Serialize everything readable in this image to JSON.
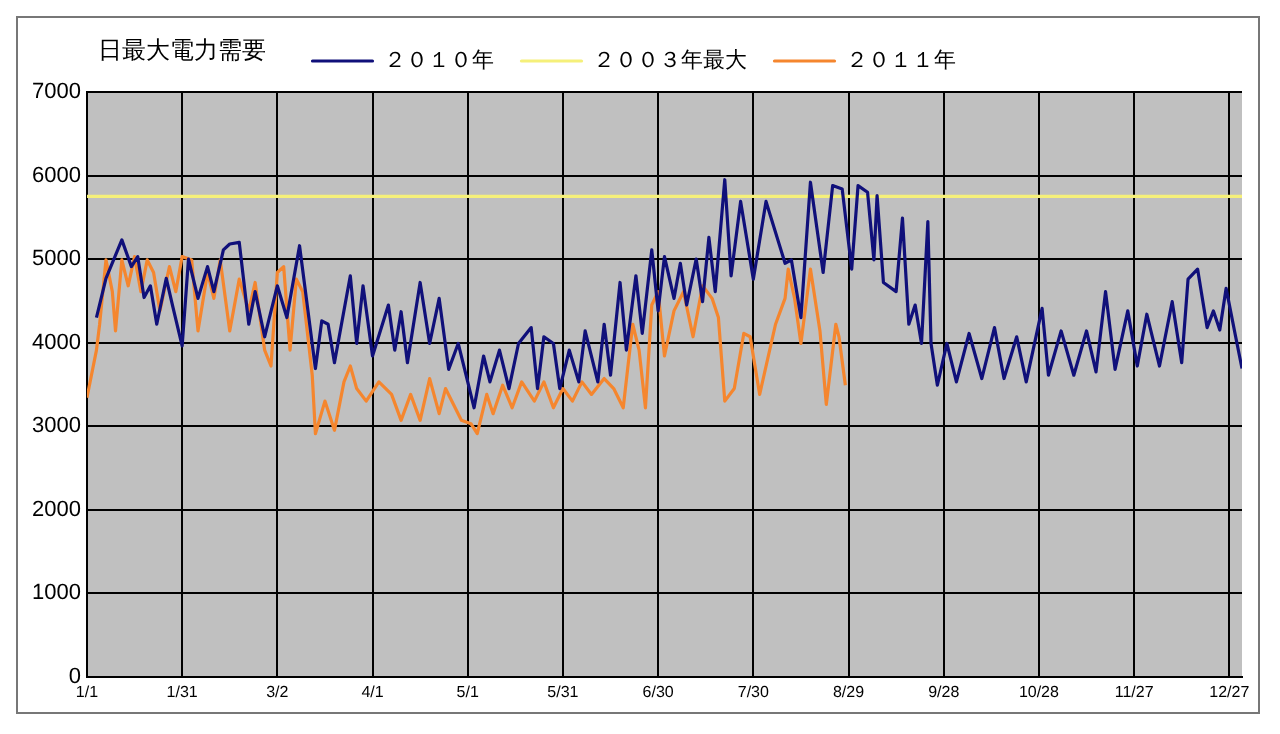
{
  "chart_data": {
    "type": "line",
    "title": "日最大電力需要",
    "legend": "top",
    "grid": true,
    "xlim": [
      "--01-01",
      "--12-31"
    ],
    "xticks": [
      {
        "value": "--01-01",
        "label": "1/1"
      },
      {
        "value": "--01-31",
        "label": "1/31"
      },
      {
        "value": "--03-02",
        "label": "3/2"
      },
      {
        "value": "--04-01",
        "label": "4/1"
      },
      {
        "value": "--05-01",
        "label": "5/1"
      },
      {
        "value": "--05-31",
        "label": "5/31"
      },
      {
        "value": "--06-30",
        "label": "6/30"
      },
      {
        "value": "--07-30",
        "label": "7/30"
      },
      {
        "value": "--08-29",
        "label": "8/29"
      },
      {
        "value": "--09-28",
        "label": "9/28"
      },
      {
        "value": "--10-28",
        "label": "10/28"
      },
      {
        "value": "--11-27",
        "label": "11/27"
      },
      {
        "value": "--12-27",
        "label": "12/27"
      }
    ],
    "ylim": [
      0,
      7000
    ],
    "yticks": [
      0,
      1000,
      2000,
      3000,
      4000,
      5000,
      6000,
      7000
    ],
    "series": [
      {
        "name": "２０１０年",
        "color": "#10107a",
        "x": [
          "--01-04",
          "--01-07",
          "--01-12",
          "--01-15",
          "--01-17",
          "--01-19",
          "--01-21",
          "--01-23",
          "--01-26",
          "--01-28",
          "--01-31",
          "--02-02",
          "--02-05",
          "--02-08",
          "--02-10",
          "--02-13",
          "--02-15",
          "--02-18",
          "--02-21",
          "--02-23",
          "--02-26",
          "--03-02",
          "--03-05",
          "--03-09",
          "--03-14",
          "--03-16",
          "--03-18",
          "--03-20",
          "--03-25",
          "--03-27",
          "--03-29",
          "--04-01",
          "--04-06",
          "--04-08",
          "--04-10",
          "--04-12",
          "--04-16",
          "--04-19",
          "--04-22",
          "--04-25",
          "--04-28",
          "--05-01",
          "--05-03",
          "--05-06",
          "--05-08",
          "--05-11",
          "--05-14",
          "--05-17",
          "--05-21",
          "--05-23",
          "--05-25",
          "--05-28",
          "--05-30",
          "--06-02",
          "--06-05",
          "--06-07",
          "--06-11",
          "--06-13",
          "--06-15",
          "--06-18",
          "--06-20",
          "--06-23",
          "--06-25",
          "--06-28",
          "--06-30",
          "--07-02",
          "--07-05",
          "--07-07",
          "--07-09",
          "--07-12",
          "--07-14",
          "--07-16",
          "--07-18",
          "--07-21",
          "--07-23",
          "--07-26",
          "--07-30",
          "--08-03",
          "--08-09",
          "--08-11",
          "--08-14",
          "--08-17",
          "--08-21",
          "--08-24",
          "--08-27",
          "--08-30",
          "--09-01",
          "--09-04",
          "--09-06",
          "--09-07",
          "--09-09",
          "--09-13",
          "--09-15",
          "--09-17",
          "--09-19",
          "--09-21",
          "--09-23",
          "--09-24",
          "--09-26",
          "--09-29",
          "--10-02",
          "--10-06",
          "--10-10",
          "--10-14",
          "--10-17",
          "--10-21",
          "--10-24",
          "--10-29",
          "--10-31",
          "--11-04",
          "--11-08",
          "--11-12",
          "--11-15",
          "--11-18",
          "--11-21",
          "--11-25",
          "--11-28",
          "--12-01",
          "--12-05",
          "--12-09",
          "--12-12",
          "--12-14",
          "--12-17",
          "--12-20",
          "--12-22",
          "--12-24",
          "--12-26",
          "--12-29",
          "--12-31"
        ],
        "values": [
          4300,
          4770,
          5230,
          4910,
          5030,
          4540,
          4680,
          4220,
          4770,
          4440,
          3960,
          5000,
          4530,
          4910,
          4610,
          5110,
          5180,
          5200,
          4220,
          4610,
          4070,
          4680,
          4300,
          5160,
          3690,
          4260,
          4220,
          3760,
          4800,
          3990,
          4680,
          3840,
          4450,
          3910,
          4370,
          3760,
          4720,
          3990,
          4530,
          3680,
          3990,
          3530,
          3220,
          3840,
          3530,
          3910,
          3450,
          3990,
          4180,
          3450,
          4070,
          3990,
          3450,
          3910,
          3530,
          4140,
          3530,
          4220,
          3610,
          4720,
          3910,
          4800,
          4110,
          5110,
          4380,
          5030,
          4530,
          4950,
          4450,
          5000,
          4490,
          5260,
          4610,
          5950,
          4800,
          5690,
          4760,
          5690,
          4950,
          4990,
          4300,
          5920,
          4840,
          5880,
          5840,
          4880,
          5880,
          5800,
          4990,
          5760,
          4720,
          4610,
          5490,
          4220,
          4450,
          3990,
          5450,
          3990,
          3490,
          3990,
          3530,
          4110,
          3570,
          4180,
          3570,
          4070,
          3530,
          4410,
          3610,
          4140,
          3610,
          4140,
          3650,
          4610,
          3680,
          4380,
          3720,
          4340,
          3720,
          4490,
          3760,
          4760,
          4880,
          4180,
          4380,
          4150,
          4650,
          4070,
          3690
        ]
      },
      {
        "name": "２００３年最大",
        "color": "#f5f07a",
        "x": [
          "--01-01",
          "--12-31"
        ],
        "values": [
          5750,
          5750
        ]
      },
      {
        "name": "２０１１年",
        "color": "#f5862e",
        "x": [
          "--01-01",
          "--01-04",
          "--01-05",
          "--01-07",
          "--01-09",
          "--01-10",
          "--01-12",
          "--01-14",
          "--01-16",
          "--01-18",
          "--01-20",
          "--01-22",
          "--01-24",
          "--01-27",
          "--01-29",
          "--01-31",
          "--02-03",
          "--02-05",
          "--02-08",
          "--02-10",
          "--02-12",
          "--02-15",
          "--02-18",
          "--02-21",
          "--02-23",
          "--02-26",
          "--02-28",
          "--03-02",
          "--03-04",
          "--03-06",
          "--03-08",
          "--03-10",
          "--03-13",
          "--03-14",
          "--03-17",
          "--03-20",
          "--03-23",
          "--03-25",
          "--03-27",
          "--03-30",
          "--04-03",
          "--04-07",
          "--04-10",
          "--04-13",
          "--04-16",
          "--04-19",
          "--04-22",
          "--04-24",
          "--04-29",
          "--05-02",
          "--05-04",
          "--05-07",
          "--05-09",
          "--05-12",
          "--05-15",
          "--05-18",
          "--05-22",
          "--05-25",
          "--05-28",
          "--05-31",
          "--06-03",
          "--06-06",
          "--06-09",
          "--06-13",
          "--06-16",
          "--06-19",
          "--06-22",
          "--06-24",
          "--06-26",
          "--06-28",
          "--06-30",
          "--07-02",
          "--07-05",
          "--07-08",
          "--07-11",
          "--07-14",
          "--07-17",
          "--07-19",
          "--07-21",
          "--07-24",
          "--07-27",
          "--07-29",
          "--08-01",
          "--08-06",
          "--08-09",
          "--08-10",
          "--08-12",
          "--08-14",
          "--08-17",
          "--08-20",
          "--08-22",
          "--08-25",
          "--08-26",
          "--08-28"
        ],
        "values": [
          3340,
          3910,
          4220,
          4990,
          4610,
          4140,
          4990,
          4680,
          5030,
          4610,
          4990,
          4840,
          4380,
          4910,
          4610,
          5030,
          4990,
          4140,
          4840,
          4530,
          4990,
          4140,
          4760,
          4380,
          4720,
          3910,
          3720,
          4840,
          4910,
          3910,
          4760,
          4610,
          3610,
          2910,
          3300,
          2950,
          3530,
          3720,
          3450,
          3300,
          3530,
          3380,
          3070,
          3380,
          3070,
          3570,
          3150,
          3450,
          3070,
          3030,
          2910,
          3380,
          3150,
          3490,
          3220,
          3530,
          3300,
          3530,
          3220,
          3450,
          3300,
          3530,
          3380,
          3570,
          3450,
          3220,
          4220,
          3910,
          3220,
          4450,
          4610,
          3840,
          4380,
          4610,
          4070,
          4680,
          4530,
          4300,
          3300,
          3450,
          4110,
          4070,
          3380,
          4220,
          4530,
          4880,
          4530,
          3990,
          4880,
          4140,
          3260,
          4220,
          4070,
          3490
        ]
      }
    ]
  }
}
